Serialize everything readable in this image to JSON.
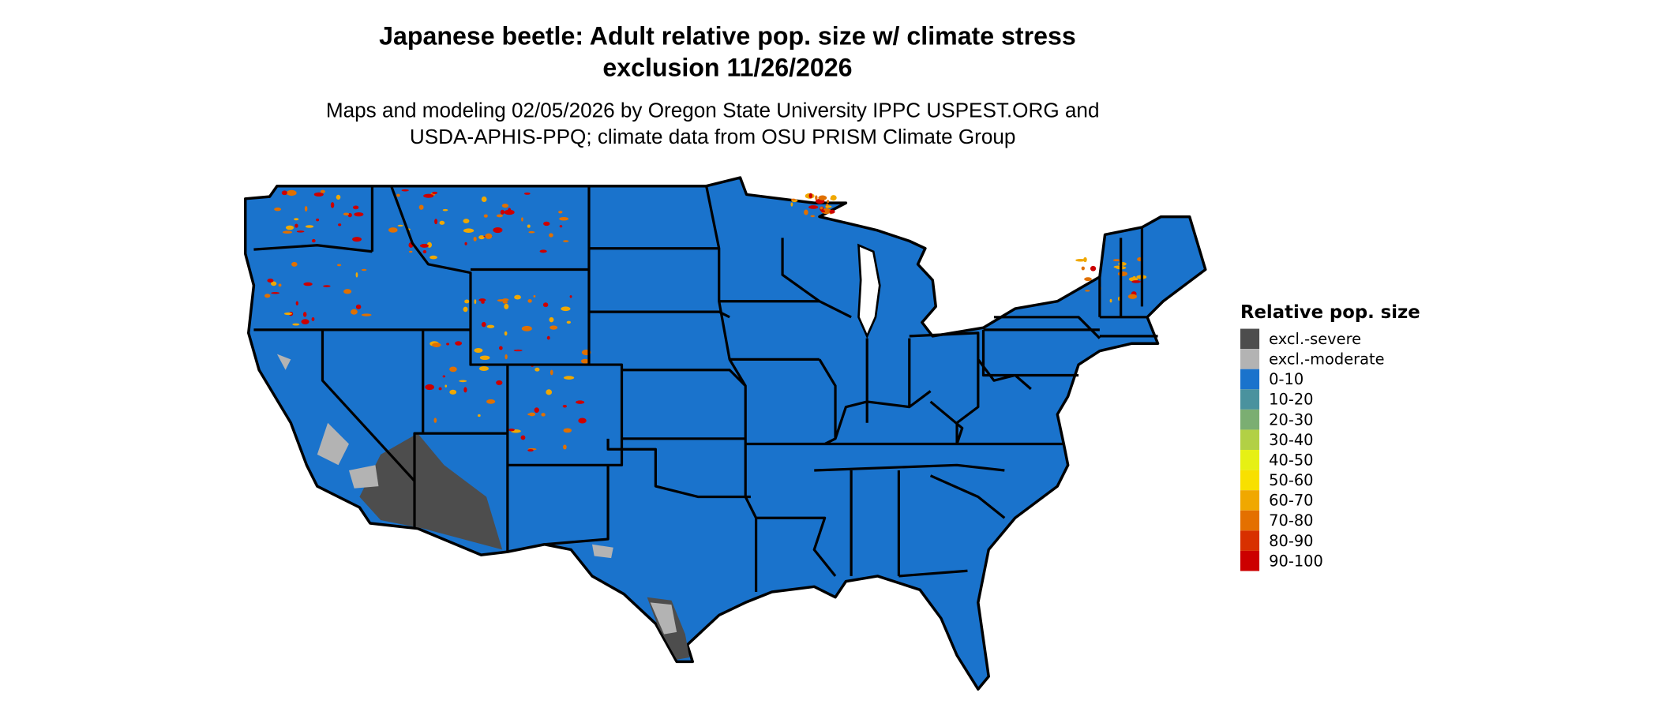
{
  "title": {
    "line1": "Japanese beetle: Adult relative pop. size w/ climate stress",
    "line2": "exclusion 11/26/2026"
  },
  "subtitle": {
    "line1": "Maps and modeling 02/05/2026 by Oregon State University IPPC USPEST.ORG and",
    "line2": "USDA-APHIS-PPQ; climate data from OSU PRISM Climate Group"
  },
  "map": {
    "region": "Contiguous United States",
    "dominant_class": "0-10",
    "colors": {
      "land": "#1a73cc",
      "excl_severe": "#4d4d4d",
      "excl_moderate": "#b3b3b3",
      "hotspot": "#e07000",
      "hotspot_high": "#cc0000",
      "border": "#000000"
    }
  },
  "legend": {
    "title": "Relative pop. size",
    "items": [
      {
        "label": "excl.-severe",
        "color": "#4d4d4d"
      },
      {
        "label": "excl.-moderate",
        "color": "#b3b3b3"
      },
      {
        "label": "0-10",
        "color": "#1a73cc"
      },
      {
        "label": "10-20",
        "color": "#4a929e"
      },
      {
        "label": "20-30",
        "color": "#7bae72"
      },
      {
        "label": "30-40",
        "color": "#b2d045"
      },
      {
        "label": "40-50",
        "color": "#e6f014"
      },
      {
        "label": "50-60",
        "color": "#f8e000"
      },
      {
        "label": "60-70",
        "color": "#f0a800"
      },
      {
        "label": "70-80",
        "color": "#e47000"
      },
      {
        "label": "80-90",
        "color": "#d83000"
      },
      {
        "label": "90-100",
        "color": "#cc0000"
      }
    ]
  }
}
